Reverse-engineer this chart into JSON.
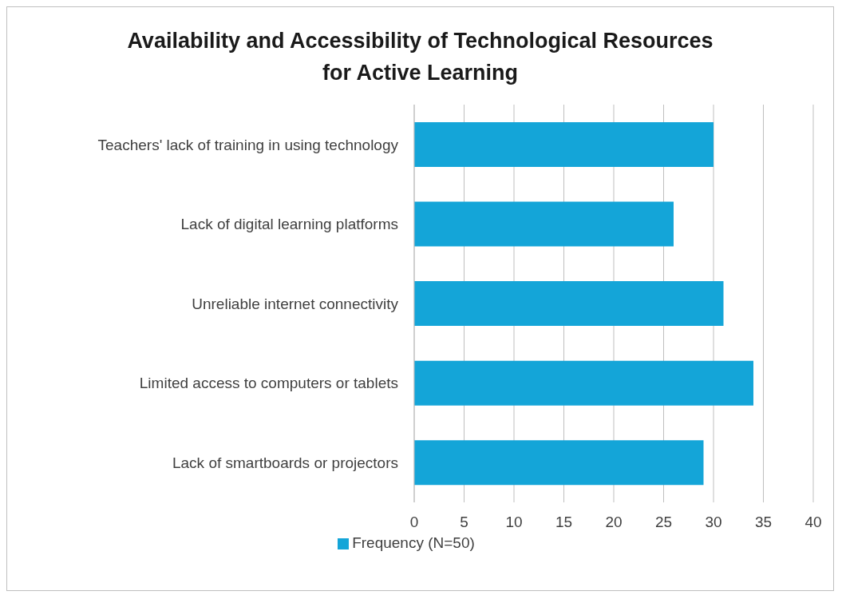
{
  "chart_data": {
    "type": "bar",
    "orientation": "horizontal",
    "title": "Availability and Accessibility of Technological Resources for Active Learning",
    "categories": [
      "Teachers' lack of training in using technology",
      "Lack of digital learning platforms",
      "Unreliable internet connectivity",
      "Limited access to computers or tablets",
      "Lack of smartboards or projectors"
    ],
    "series": [
      {
        "name": "Frequency (N=50)",
        "color": "#14a5d8",
        "values": [
          30,
          26,
          31,
          34,
          29
        ]
      }
    ],
    "xlim": [
      0,
      40
    ],
    "xticks": [
      0,
      5,
      10,
      15,
      20,
      25,
      30,
      35,
      40
    ],
    "grid": "x",
    "legend": "bottom"
  }
}
